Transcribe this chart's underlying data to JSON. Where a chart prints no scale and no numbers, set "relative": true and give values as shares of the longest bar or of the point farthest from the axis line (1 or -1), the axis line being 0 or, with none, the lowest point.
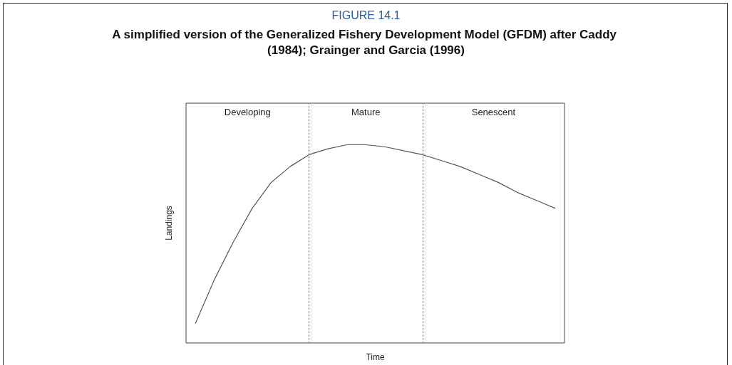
{
  "chart_data": {
    "type": "line",
    "title": "FIGURE 14.1",
    "subtitle": "A simplified version of the Generalized Fishery Development Model (GFDM) after Caddy (1984); Grainger and Garcia (1996)",
    "xlabel": "Time",
    "ylabel": "Landings",
    "relative": true,
    "marker": "none",
    "line_style": "solid",
    "categories": [
      null,
      null,
      null,
      null,
      null,
      null,
      null,
      null,
      null,
      null,
      null,
      null,
      null,
      null,
      null,
      null,
      null,
      null,
      null,
      null
    ],
    "series": [
      {
        "color": "#555555",
        "values": [
          0.1,
          0.32,
          0.51,
          0.68,
          0.81,
          0.89,
          0.95,
          0.98,
          1.0,
          1.0,
          0.99,
          0.97,
          0.95,
          0.92,
          0.89,
          0.85,
          0.81,
          0.76,
          0.72,
          0.68
        ]
      }
    ],
    "annotations": [
      "Developing",
      "Mature",
      "Senescent"
    ]
  }
}
